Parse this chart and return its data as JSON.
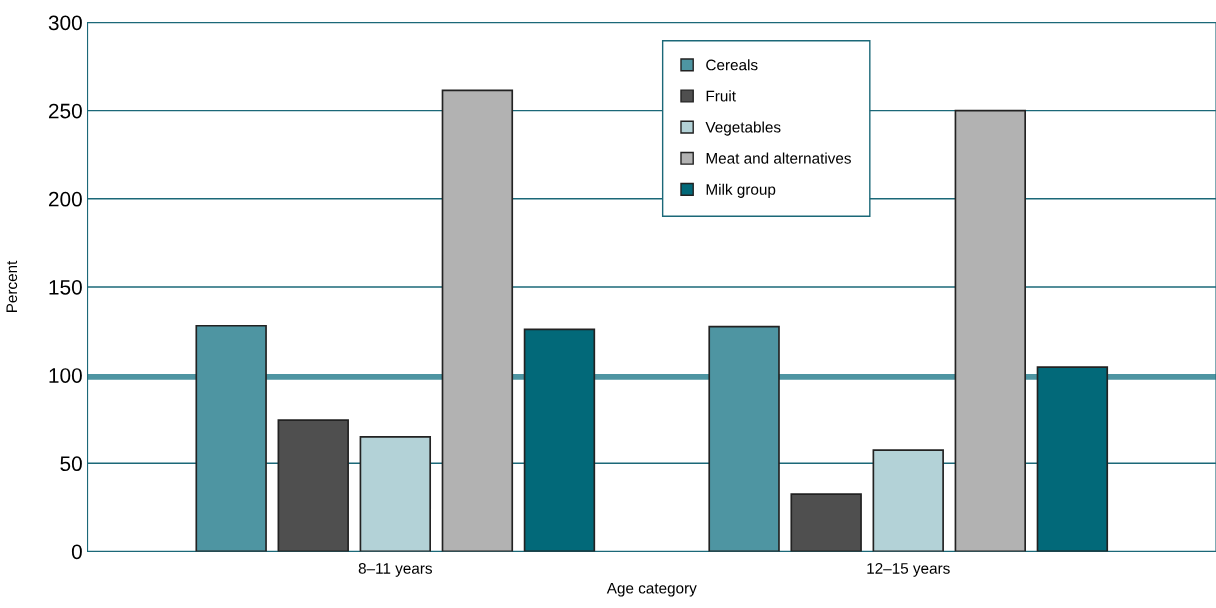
{
  "chart_data": {
    "type": "bar",
    "xlabel": "Age category",
    "ylabel": "Percent",
    "categories": [
      "8–11 years",
      "12–15 years"
    ],
    "series": [
      {
        "name": "Cereals",
        "color": "#4e95a2",
        "values": [
          128,
          127.5
        ]
      },
      {
        "name": "Fruit",
        "color": "#4f4f4f",
        "values": [
          74.5,
          32.5
        ]
      },
      {
        "name": "Vegetables",
        "color": "#b3d2d7",
        "values": [
          65,
          57.5
        ]
      },
      {
        "name": "Meat and alternatives",
        "color": "#b2b2b2",
        "values": [
          261.5,
          250
        ]
      },
      {
        "name": "Milk group",
        "color": "#026979",
        "values": [
          126,
          104.5
        ]
      }
    ],
    "ylim": [
      0,
      300
    ],
    "yticks": [
      0,
      50,
      100,
      150,
      200,
      250,
      300
    ],
    "grid": "y",
    "legend": "top",
    "ref_lines": [
      {
        "axis": "y",
        "value": 99,
        "color": "#4e95a2"
      }
    ]
  }
}
